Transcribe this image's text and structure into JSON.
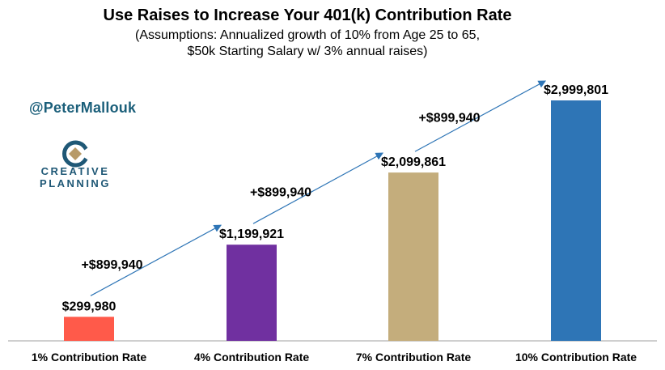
{
  "chart_data": {
    "type": "bar",
    "title": "Use Raises to Increase Your 401(k) Contribution Rate",
    "subtitle_lines": [
      "(Assumptions: Annualized growth of 10% from Age 25 to 65,",
      "$50k Starting Salary w/ 3% annual raises)"
    ],
    "categories": [
      "1% Contribution Rate",
      "4% Contribution Rate",
      "7% Contribution Rate",
      "10% Contribution Rate"
    ],
    "values": [
      299980,
      1199921,
      2099861,
      2999801
    ],
    "value_labels": [
      "$299,980",
      "$1,199,921",
      "$2,099,861",
      "$2,999,801"
    ],
    "increments": [
      "+$899,940",
      "+$899,940",
      "+$899,940"
    ],
    "bar_colors": [
      "#ff5a4a",
      "#7030a0",
      "#c4ad7c",
      "#2e75b6"
    ],
    "arrow_color": "#2e75b6",
    "ylim": [
      0,
      3000000
    ],
    "xlabel": "",
    "ylabel": "",
    "grid": false,
    "legend": false
  },
  "branding": {
    "handle": "@PeterMallouk",
    "logo_line1": "CREATIVE",
    "logo_line2": "PLANNING"
  },
  "colors": {
    "handle": "#1b5f7a",
    "logo_blue": "#1f5876",
    "logo_tan": "#b79a68",
    "axis": "#bfbfbf"
  }
}
